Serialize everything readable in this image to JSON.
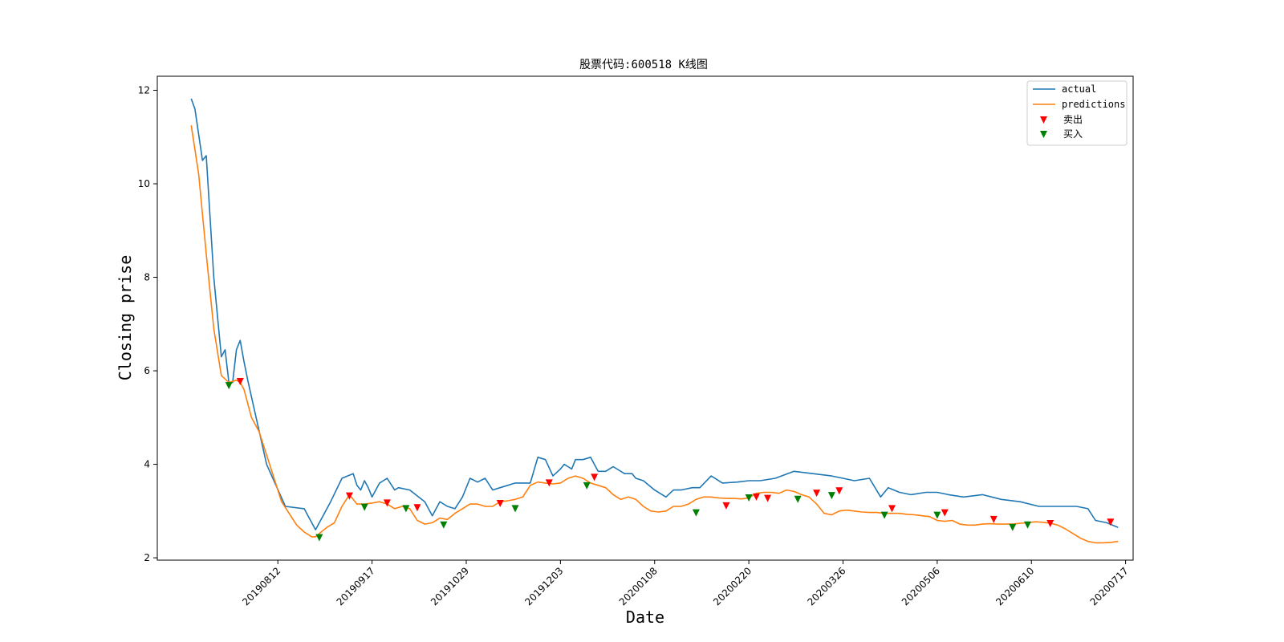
{
  "chart_data": {
    "type": "line",
    "title": "股票代码:600518 K线图",
    "xlabel": "Date",
    "ylabel": "Closing prise",
    "ylim": [
      1.95,
      12.3
    ],
    "yticks": [
      2,
      4,
      6,
      8,
      10,
      12
    ],
    "xlim": [
      -9,
      250
    ],
    "xticks": [
      {
        "label": "20190812",
        "x": 23
      },
      {
        "label": "20190917",
        "x": 48
      },
      {
        "label": "20191029",
        "x": 73
      },
      {
        "label": "20191203",
        "x": 98
      },
      {
        "label": "20200108",
        "x": 123
      },
      {
        "label": "20200220",
        "x": 148
      },
      {
        "label": "20200326",
        "x": 173
      },
      {
        "label": "20200506",
        "x": 198
      },
      {
        "label": "20200610",
        "x": 223
      },
      {
        "label": "20200717",
        "x": 248
      }
    ],
    "grid": false,
    "legend_position": "top-right",
    "colors": {
      "actual": "#1f77b4",
      "predictions": "#ff7f0e",
      "sell": "#ff0000",
      "buy": "#008000"
    },
    "series": [
      {
        "name": "actual",
        "x": [
          0,
          1,
          3,
          4,
          6,
          8,
          9,
          10,
          11,
          12,
          13,
          14,
          15,
          20,
          25,
          30,
          31,
          32,
          33,
          34,
          35,
          37,
          40,
          43,
          44,
          45,
          46,
          47,
          48,
          50,
          51,
          52,
          54,
          55,
          58,
          62,
          64,
          66,
          68,
          70,
          72,
          74,
          76,
          78,
          80,
          82,
          84,
          86,
          88,
          90,
          92,
          94,
          96,
          98,
          99,
          100,
          101,
          102,
          104,
          106,
          108,
          110,
          112,
          115,
          117,
          118,
          120,
          123,
          126,
          128,
          130,
          133,
          135,
          138,
          141,
          145,
          148,
          151,
          155,
          160,
          165,
          170,
          173,
          176,
          180,
          183,
          185,
          188,
          191,
          195,
          198,
          201,
          205,
          210,
          215,
          220,
          225,
          230,
          235,
          238,
          240,
          243,
          246
        ],
        "y": [
          11.82,
          11.6,
          10.5,
          10.6,
          8.0,
          6.3,
          6.45,
          5.75,
          5.75,
          6.45,
          6.65,
          6.2,
          5.8,
          4.0,
          3.1,
          3.05,
          2.9,
          2.75,
          2.6,
          2.75,
          2.9,
          3.2,
          3.7,
          3.8,
          3.55,
          3.45,
          3.65,
          3.5,
          3.3,
          3.6,
          3.65,
          3.7,
          3.45,
          3.5,
          3.45,
          3.2,
          2.9,
          3.2,
          3.1,
          3.05,
          3.3,
          3.7,
          3.62,
          3.7,
          3.45,
          3.5,
          3.55,
          3.6,
          3.6,
          3.6,
          4.15,
          4.1,
          3.75,
          3.9,
          4.0,
          3.95,
          3.9,
          4.1,
          4.1,
          4.15,
          3.85,
          3.85,
          3.95,
          3.8,
          3.8,
          3.7,
          3.65,
          3.45,
          3.3,
          3.45,
          3.45,
          3.5,
          3.5,
          3.75,
          3.6,
          3.62,
          3.65,
          3.65,
          3.7,
          3.85,
          3.8,
          3.75,
          3.7,
          3.65,
          3.7,
          3.3,
          3.5,
          3.4,
          3.35,
          3.4,
          3.4,
          3.35,
          3.3,
          3.35,
          3.25,
          3.2,
          3.1,
          3.1,
          3.1,
          3.05,
          2.8,
          2.75,
          2.65
        ]
      },
      {
        "name": "predictions",
        "x": [
          0,
          2,
          4,
          6,
          8,
          10,
          12,
          13,
          14,
          16,
          18,
          20,
          24,
          28,
          30,
          32,
          33,
          34,
          36,
          38,
          40,
          42,
          44,
          46,
          48,
          50,
          52,
          54,
          56,
          58,
          60,
          62,
          64,
          66,
          68,
          70,
          72,
          74,
          76,
          78,
          80,
          82,
          84,
          86,
          88,
          90,
          92,
          94,
          96,
          98,
          100,
          102,
          104,
          106,
          108,
          110,
          112,
          114,
          116,
          118,
          120,
          122,
          124,
          126,
          128,
          130,
          132,
          134,
          136,
          138,
          140,
          142,
          144,
          146,
          148,
          150,
          152,
          154,
          156,
          158,
          160,
          162,
          164,
          166,
          168,
          170,
          172,
          174,
          176,
          178,
          180,
          182,
          184,
          186,
          188,
          190,
          192,
          194,
          196,
          198,
          200,
          202,
          204,
          206,
          208,
          210,
          212,
          214,
          216,
          218,
          220,
          222,
          224,
          226,
          228,
          230,
          232,
          234,
          236,
          238,
          240,
          242,
          244,
          246
        ],
        "y": [
          11.25,
          10.2,
          8.5,
          6.9,
          5.9,
          5.75,
          5.8,
          5.75,
          5.6,
          5.0,
          4.7,
          4.2,
          3.2,
          2.7,
          2.55,
          2.45,
          2.45,
          2.52,
          2.65,
          2.75,
          3.1,
          3.35,
          3.15,
          3.15,
          3.17,
          3.2,
          3.15,
          3.05,
          3.1,
          3.05,
          2.8,
          2.72,
          2.75,
          2.85,
          2.82,
          2.95,
          3.05,
          3.15,
          3.15,
          3.1,
          3.1,
          3.2,
          3.22,
          3.25,
          3.3,
          3.55,
          3.62,
          3.6,
          3.58,
          3.6,
          3.7,
          3.75,
          3.7,
          3.6,
          3.55,
          3.5,
          3.35,
          3.25,
          3.3,
          3.25,
          3.1,
          3.0,
          2.98,
          3.0,
          3.1,
          3.1,
          3.15,
          3.25,
          3.3,
          3.3,
          3.28,
          3.27,
          3.27,
          3.26,
          3.28,
          3.38,
          3.4,
          3.4,
          3.38,
          3.45,
          3.42,
          3.35,
          3.3,
          3.15,
          2.95,
          2.92,
          3.0,
          3.02,
          3.0,
          2.98,
          2.97,
          2.97,
          2.95,
          2.95,
          2.95,
          2.93,
          2.92,
          2.9,
          2.88,
          2.8,
          2.78,
          2.8,
          2.72,
          2.7,
          2.7,
          2.72,
          2.73,
          2.72,
          2.72,
          2.72,
          2.74,
          2.75,
          2.77,
          2.76,
          2.74,
          2.7,
          2.62,
          2.52,
          2.42,
          2.35,
          2.32,
          2.32,
          2.33,
          2.35
        ]
      }
    ],
    "markers": {
      "sell": {
        "name": "卖出",
        "x": [
          13,
          42,
          52,
          60,
          82,
          95,
          107,
          142,
          150,
          153,
          166,
          172,
          186,
          200,
          213,
          228,
          244
        ],
        "y": [
          5.77,
          3.32,
          3.17,
          3.07,
          3.16,
          3.6,
          3.72,
          3.11,
          3.3,
          3.27,
          3.38,
          3.43,
          3.05,
          2.96,
          2.82,
          2.73,
          2.76
        ]
      },
      "buy": {
        "name": "买入",
        "x": [
          10,
          34,
          46,
          57,
          67,
          86,
          105,
          134,
          148,
          161,
          170,
          184,
          198,
          218,
          222
        ],
        "y": [
          5.68,
          2.43,
          3.08,
          3.05,
          2.7,
          3.05,
          3.54,
          2.96,
          3.28,
          3.25,
          3.33,
          2.91,
          2.91,
          2.65,
          2.7
        ]
      }
    }
  }
}
